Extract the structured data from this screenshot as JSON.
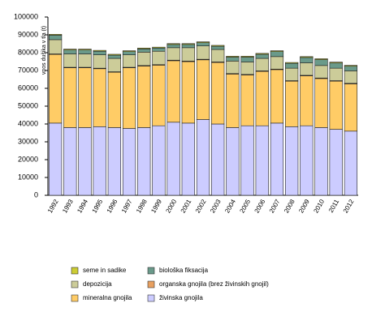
{
  "chart_data": {
    "type": "stacked-bar",
    "y_label": "vnos dušika v tla (t)",
    "categories": [
      "1992",
      "1993",
      "1994",
      "1995",
      "1996",
      "1997",
      "1998",
      "1999",
      "2000",
      "2001",
      "2002",
      "2003",
      "2004",
      "2005",
      "2006",
      "2007",
      "2008",
      "2009",
      "2010",
      "2011",
      "2012"
    ],
    "series": [
      {
        "name": "živinska gnojila",
        "color": "#ccccff",
        "values": [
          40500,
          38000,
          38000,
          38500,
          38000,
          37500,
          38000,
          39000,
          41000,
          40500,
          42500,
          40000,
          38000,
          39000,
          39000,
          40500,
          38500,
          39000,
          38000,
          37000,
          36000
        ]
      },
      {
        "name": "mineralna gnojila",
        "color": "#ffcc66",
        "values": [
          38500,
          33500,
          33500,
          32500,
          31000,
          34000,
          34500,
          34000,
          34500,
          34500,
          33500,
          34500,
          30000,
          28500,
          30500,
          30000,
          25500,
          28000,
          27500,
          27000,
          26500
        ]
      },
      {
        "name": "organska gnojila (brez živinskih gnojil)",
        "color": "#e8a060",
        "values": [
          300,
          300,
          300,
          300,
          300,
          300,
          300,
          300,
          300,
          300,
          300,
          300,
          300,
          300,
          300,
          300,
          300,
          300,
          300,
          300,
          300
        ]
      },
      {
        "name": "depozicija",
        "color": "#cccc99",
        "values": [
          8000,
          7500,
          7500,
          7500,
          7500,
          7000,
          7500,
          7500,
          7000,
          7500,
          7500,
          7000,
          7000,
          7000,
          7000,
          7000,
          7000,
          7000,
          7000,
          7000,
          7000
        ]
      },
      {
        "name": "biološka fiksacija",
        "color": "#6a9a8a",
        "values": [
          2500,
          2200,
          2200,
          2000,
          1800,
          1800,
          1800,
          1800,
          1800,
          1800,
          1800,
          1800,
          2200,
          2700,
          2300,
          2800,
          2700,
          3000,
          3300,
          2900,
          2600
        ]
      },
      {
        "name": "seme in sadike",
        "color": "#cccc33",
        "values": [
          500,
          500,
          500,
          500,
          500,
          500,
          500,
          500,
          500,
          500,
          500,
          500,
          500,
          500,
          500,
          500,
          500,
          500,
          500,
          500,
          500
        ]
      }
    ],
    "ylim": [
      0,
      100000
    ],
    "yticks": [
      0,
      10000,
      20000,
      30000,
      40000,
      50000,
      60000,
      70000,
      80000,
      90000,
      100000
    ]
  }
}
